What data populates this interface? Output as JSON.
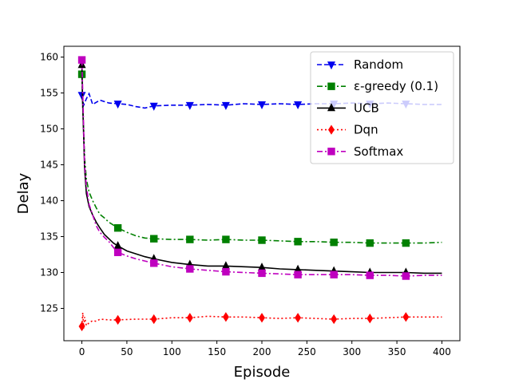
{
  "chart_data": {
    "type": "line",
    "title": "",
    "xlabel": "Episode",
    "ylabel": "Delay",
    "xlim": [
      -20,
      420
    ],
    "ylim": [
      120.5,
      161.5
    ],
    "xticks": [
      0,
      50,
      100,
      150,
      200,
      250,
      300,
      350,
      400
    ],
    "yticks": [
      125,
      130,
      135,
      140,
      145,
      150,
      155,
      160
    ],
    "grid": false,
    "legend_position": "top-right",
    "series": [
      {
        "name": "Random",
        "color": "#0000ee",
        "dash": "dashed",
        "marker": "triangle-down",
        "x": [
          0,
          2,
          5,
          8,
          12,
          20,
          30,
          40,
          50,
          60,
          70,
          80,
          100,
          120,
          140,
          160,
          180,
          200,
          220,
          240,
          260,
          280,
          300,
          320,
          340,
          360,
          380,
          400
        ],
        "y": [
          154.7,
          153.3,
          154.2,
          154.9,
          153.4,
          154.0,
          153.6,
          153.5,
          153.4,
          153.1,
          152.9,
          153.2,
          153.3,
          153.3,
          153.4,
          153.3,
          153.5,
          153.4,
          153.5,
          153.4,
          153.5,
          153.5,
          153.6,
          153.5,
          153.6,
          153.5,
          153.4,
          153.4
        ],
        "marker_x": [
          0,
          40,
          80,
          120,
          160,
          200,
          240,
          280,
          320,
          360
        ]
      },
      {
        "name": "ε-greedy (0.1)",
        "color": "#008000",
        "dash": "dashdot",
        "marker": "square",
        "x": [
          0,
          1,
          2,
          3,
          5,
          8,
          12,
          16,
          20,
          25,
          30,
          35,
          40,
          50,
          60,
          70,
          80,
          100,
          120,
          140,
          160,
          180,
          200,
          220,
          240,
          260,
          280,
          300,
          320,
          340,
          360,
          380,
          400
        ],
        "y": [
          157.6,
          153.0,
          149.8,
          146.0,
          143.0,
          141.2,
          140.0,
          139.0,
          138.1,
          137.6,
          137.0,
          136.6,
          136.2,
          135.6,
          135.1,
          134.8,
          134.7,
          134.6,
          134.6,
          134.5,
          134.6,
          134.5,
          134.5,
          134.4,
          134.3,
          134.3,
          134.2,
          134.2,
          134.1,
          134.1,
          134.1,
          134.1,
          134.2
        ],
        "marker_x": [
          0,
          40,
          80,
          120,
          160,
          200,
          240,
          280,
          320,
          360
        ]
      },
      {
        "name": "UCB",
        "color": "#000000",
        "dash": "solid",
        "marker": "triangle-up",
        "x": [
          0,
          1,
          2,
          3,
          5,
          8,
          12,
          16,
          20,
          25,
          30,
          35,
          40,
          50,
          60,
          70,
          80,
          100,
          120,
          140,
          160,
          180,
          200,
          220,
          240,
          260,
          280,
          300,
          320,
          340,
          360,
          380,
          400
        ],
        "y": [
          158.9,
          153.0,
          149.0,
          144.5,
          141.0,
          139.2,
          138.0,
          137.0,
          136.2,
          135.3,
          134.7,
          134.1,
          133.7,
          133.0,
          132.6,
          132.2,
          131.9,
          131.4,
          131.1,
          130.9,
          130.9,
          130.8,
          130.7,
          130.5,
          130.4,
          130.3,
          130.2,
          130.1,
          130.0,
          130.0,
          130.0,
          129.9,
          129.9
        ],
        "marker_x": [
          0,
          40,
          80,
          120,
          160,
          200,
          240,
          280,
          320,
          360
        ]
      },
      {
        "name": "Dqn",
        "color": "#ff0000",
        "dash": "dotted",
        "marker": "diamond",
        "x": [
          0,
          1,
          2,
          3,
          5,
          8,
          12,
          16,
          20,
          30,
          40,
          60,
          80,
          100,
          120,
          140,
          160,
          180,
          200,
          220,
          240,
          260,
          280,
          300,
          320,
          340,
          360,
          380,
          400
        ],
        "y": [
          122.5,
          124.4,
          122.2,
          123.8,
          122.6,
          123.0,
          123.3,
          123.2,
          123.5,
          123.4,
          123.4,
          123.5,
          123.5,
          123.7,
          123.7,
          123.9,
          123.8,
          123.8,
          123.7,
          123.6,
          123.7,
          123.6,
          123.5,
          123.6,
          123.6,
          123.7,
          123.8,
          123.8,
          123.8
        ],
        "marker_x": [
          0,
          40,
          80,
          120,
          160,
          200,
          240,
          280,
          320,
          360
        ]
      },
      {
        "name": "Softmax",
        "color": "#bf00bf",
        "dash": "dashdot",
        "marker": "square",
        "x": [
          0,
          1,
          2,
          3,
          5,
          8,
          12,
          16,
          20,
          25,
          30,
          35,
          40,
          50,
          60,
          70,
          80,
          100,
          120,
          140,
          160,
          180,
          200,
          220,
          240,
          260,
          280,
          300,
          320,
          340,
          360,
          380,
          400
        ],
        "y": [
          159.6,
          155.0,
          150.0,
          145.0,
          142.0,
          139.5,
          138.0,
          136.5,
          135.6,
          134.9,
          134.3,
          133.5,
          132.8,
          132.3,
          131.9,
          131.6,
          131.3,
          130.8,
          130.5,
          130.3,
          130.1,
          130.0,
          129.9,
          129.8,
          129.7,
          129.7,
          129.7,
          129.7,
          129.6,
          129.6,
          129.5,
          129.6,
          129.6
        ],
        "marker_x": [
          0,
          40,
          80,
          120,
          160,
          200,
          240,
          280,
          320,
          360
        ]
      }
    ]
  }
}
